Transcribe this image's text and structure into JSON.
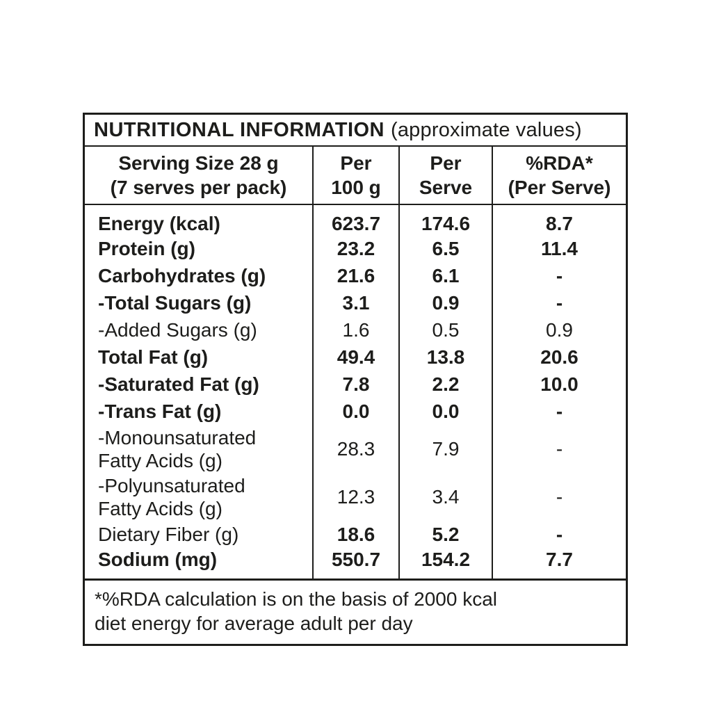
{
  "title": {
    "main": "NUTRITIONAL INFORMATION",
    "sub": "(approximate values)"
  },
  "header": {
    "serving": {
      "line1": "Serving Size 28 g",
      "line2": "(7 serves per pack)"
    },
    "per_100g": {
      "line1": "Per",
      "line2": "100 g"
    },
    "per_serve": {
      "line1": "Per",
      "line2": "Serve"
    },
    "rda": {
      "line1": "%RDA*",
      "line2": "(Per Serve)"
    }
  },
  "rows": [
    {
      "label": "Energy (kcal)",
      "per_100g": "623.7",
      "per_serve": "174.6",
      "rda": "8.7"
    },
    {
      "label": "Protein (g)",
      "per_100g": "23.2",
      "per_serve": "6.5",
      "rda": "11.4"
    },
    {
      "label": "Carbohydrates (g)",
      "per_100g": "21.6",
      "per_serve": "6.1",
      "rda": "-"
    },
    {
      "label": "-Total Sugars (g)",
      "per_100g": "3.1",
      "per_serve": "0.9",
      "rda": "-"
    },
    {
      "label": "-Added Sugars (g)",
      "per_100g": "1.6",
      "per_serve": "0.5",
      "rda": "0.9"
    },
    {
      "label": "Total Fat (g)",
      "per_100g": "49.4",
      "per_serve": "13.8",
      "rda": "20.6"
    },
    {
      "label": "-Saturated Fat (g)",
      "per_100g": "7.8",
      "per_serve": "2.2",
      "rda": "10.0"
    },
    {
      "label": "-Trans Fat (g)",
      "per_100g": "0.0",
      "per_serve": "0.0",
      "rda": "-"
    },
    {
      "label": "-Monounsaturated",
      "label2": "Fatty Acids (g)",
      "per_100g": "28.3",
      "per_serve": "7.9",
      "rda": "-"
    },
    {
      "label": "-Polyunsaturated",
      "label2": "Fatty Acids (g)",
      "per_100g": "12.3",
      "per_serve": "3.4",
      "rda": "-"
    },
    {
      "label": "Dietary Fiber (g)",
      "per_100g": "18.6",
      "per_serve": "5.2",
      "rda": "-"
    },
    {
      "label": "Sodium (mg)",
      "per_100g": "550.7",
      "per_serve": "154.2",
      "rda": "7.7"
    }
  ],
  "footer": {
    "line1": "*%RDA calculation is on the basis of 2000 kcal",
    "line2": "diet energy for average adult per day"
  },
  "colors": {
    "text": "#1d1d1b",
    "border": "#1d1d1b",
    "background": "#ffffff"
  }
}
